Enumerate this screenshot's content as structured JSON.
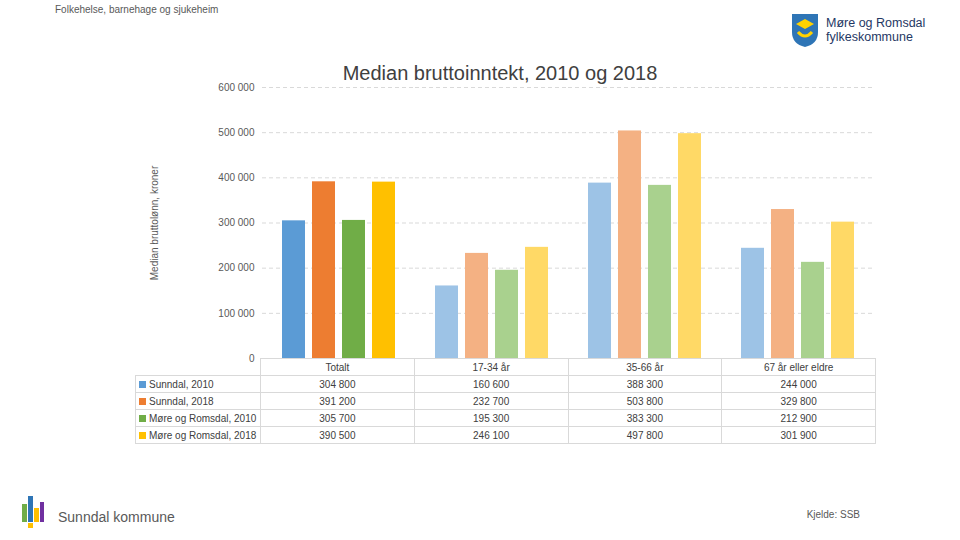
{
  "page": {
    "header": "Folkehelse, barnehage og sjukeheim",
    "logo_text": [
      "Møre og Romsdal",
      "fylkeskommune"
    ],
    "footer_left": "Sunndal kommune",
    "footer_right": "Kjelde: SSB"
  },
  "chart_data": {
    "type": "bar",
    "title": "Median bruttoinntekt, 2010 og 2018",
    "y_label": "Median bruttolønn, kroner",
    "categories": [
      "Totalt",
      "17-34 år",
      "35-66 år",
      "67 år eller eldre"
    ],
    "series": [
      {
        "name": "Sunndal, 2010",
        "color": "#5b9bd5",
        "colors": [
          "#5b9bd5",
          "#9dc3e6",
          "#9dc3e6",
          "#9dc3e6"
        ],
        "values": [
          304800,
          160600,
          388300,
          244000
        ],
        "value_labels": [
          "304 800",
          "160 600",
          "388 300",
          "244 000"
        ]
      },
      {
        "name": "Sunndal, 2018",
        "color": "#ed7d31",
        "colors": [
          "#ed7d31",
          "#f4b183",
          "#f4b183",
          "#f4b183"
        ],
        "values": [
          391200,
          232700,
          503800,
          329800
        ],
        "value_labels": [
          "391 200",
          "232 700",
          "503 800",
          "329 800"
        ]
      },
      {
        "name": "Møre og Romsdal, 2010",
        "color": "#70ad47",
        "colors": [
          "#70ad47",
          "#a9d18e",
          "#a9d18e",
          "#a9d18e"
        ],
        "values": [
          305700,
          195300,
          383300,
          212900
        ],
        "value_labels": [
          "305 700",
          "195 300",
          "383 300",
          "212 900"
        ]
      },
      {
        "name": "Møre og Romsdal, 2018",
        "color": "#ffc000",
        "colors": [
          "#ffc000",
          "#ffd966",
          "#ffd966",
          "#ffd966"
        ],
        "values": [
          390500,
          246100,
          497800,
          301900
        ],
        "value_labels": [
          "390 500",
          "246 100",
          "497 800",
          "301 900"
        ]
      }
    ],
    "ylim": [
      0,
      600000
    ],
    "yticks": [
      0,
      {
        "value": 100000,
        "label": "100 000"
      },
      {
        "value": 200000,
        "label": "200 000"
      },
      {
        "value": 300000,
        "label": "300 000"
      },
      {
        "value": 400000,
        "label": "400 000"
      },
      {
        "value": 500000,
        "label": "500 000"
      },
      {
        "value": 600000,
        "label": "600 000"
      }
    ],
    "grid": true
  }
}
